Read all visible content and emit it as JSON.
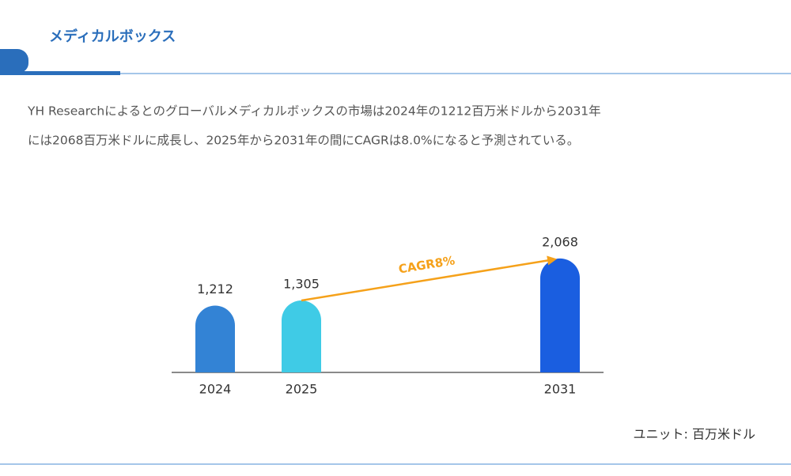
{
  "header": {
    "title": "メディカルボックス"
  },
  "description": [
    "YH Researchによるとのグローバルメディカルボックスの市場は2024年の1212百万米ドルから2031年",
    "には2068百万米ドルに成長し、2025年から2031年の間にCAGRは8.0%になると予測されている。"
  ],
  "chart_data": {
    "type": "bar",
    "categories": [
      "2024",
      "2025",
      "2031"
    ],
    "values": [
      1212,
      1305,
      2068
    ],
    "value_labels": [
      "1,212",
      "1,305",
      "2,068"
    ],
    "colors": [
      "#3383d5",
      "#3fcbe6",
      "#1a5ee0"
    ],
    "annotation": "CAGR8%",
    "annotation_color": "#f5a11a",
    "unit": "ユニット: 百万米ドル"
  }
}
